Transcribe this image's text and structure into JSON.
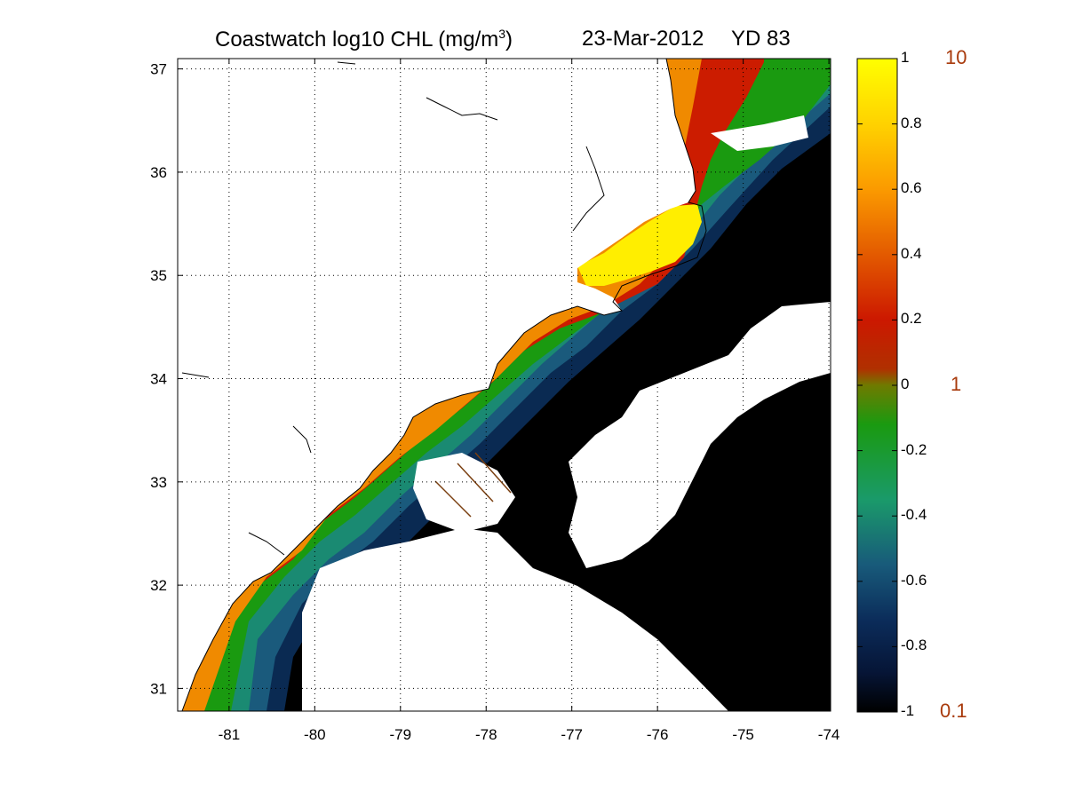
{
  "title": {
    "prefix": "Coastwatch  log10  CHL (mg/m",
    "superscript": "3",
    "suffix": ")",
    "date": "23-Mar-2012",
    "yd": "YD 83"
  },
  "map": {
    "lon_range": [
      -81.6,
      -73.98
    ],
    "lat_range": [
      30.78,
      37.1
    ],
    "lon_ticks": [
      -81,
      -80,
      -79,
      -78,
      -77,
      -76,
      -75,
      -74
    ],
    "lat_ticks": [
      31,
      32,
      33,
      34,
      35,
      36,
      37
    ],
    "grid": "dotted",
    "cloud_mask_color": "#ffffff",
    "land_color": "#ffffff",
    "coastline_color": "#000000",
    "track_color": "#7a3f10"
  },
  "colorbar": {
    "log_range": [
      -1,
      1
    ],
    "ticks": [
      "1",
      "0.8",
      "0.6",
      "0.4",
      "0.2",
      "0",
      "-0.2",
      "-0.4",
      "-0.6",
      "-0.8",
      "-1"
    ],
    "linear_labels": [
      {
        "text": "10",
        "value": 1
      },
      {
        "text": "1",
        "value": 0
      },
      {
        "text": "0.1",
        "value": -1
      }
    ],
    "colormap": [
      {
        "v": 1.0,
        "c": "#ffff00"
      },
      {
        "v": 0.8,
        "c": "#ffd200"
      },
      {
        "v": 0.6,
        "c": "#fb9a00"
      },
      {
        "v": 0.4,
        "c": "#e35a00"
      },
      {
        "v": 0.2,
        "c": "#cc1800"
      },
      {
        "v": 0.05,
        "c": "#b03000"
      },
      {
        "v": 0.0,
        "c": "#6f7a00"
      },
      {
        "v": -0.12,
        "c": "#1a9a10"
      },
      {
        "v": -0.35,
        "c": "#1a9a6a"
      },
      {
        "v": -0.55,
        "c": "#185a7a"
      },
      {
        "v": -0.72,
        "c": "#0b2c5a"
      },
      {
        "v": -0.88,
        "c": "#061536"
      },
      {
        "v": -1.0,
        "c": "#000000"
      }
    ]
  }
}
